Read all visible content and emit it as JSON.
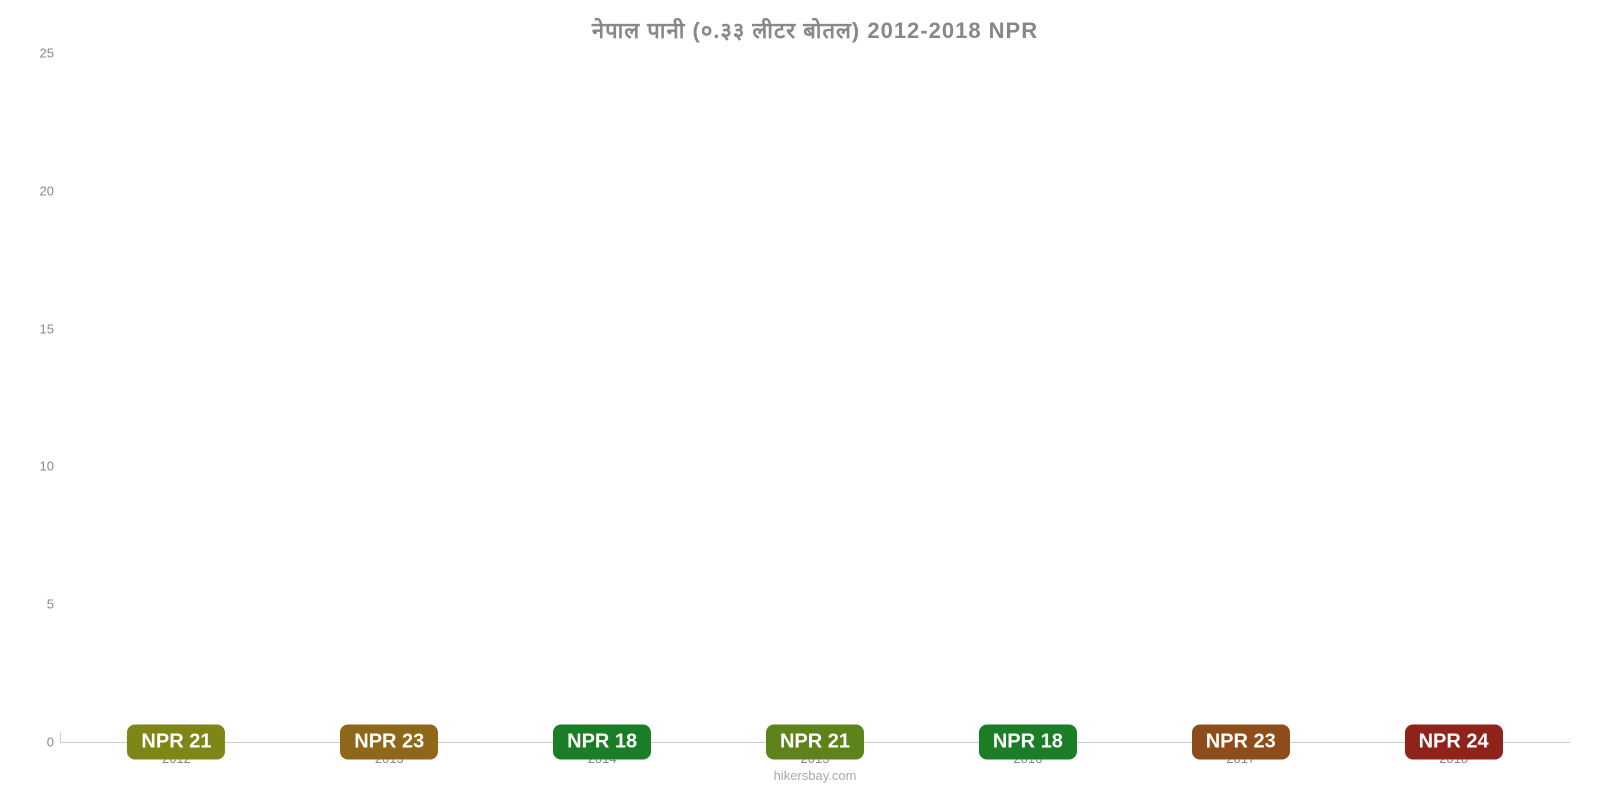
{
  "chart": {
    "type": "bar",
    "title": "नेपाल पानी (०.३३ लीटर बोतल) 2012-2018 NPR",
    "title_fontsize": 22,
    "title_color": "#888888",
    "background_color": "#ffffff",
    "grid_color": "#cccccc",
    "attribution": "hikersbay.com",
    "ylim": [
      0,
      25
    ],
    "ytick_step": 5,
    "yticks": [
      0,
      5,
      10,
      15,
      20,
      25
    ],
    "axis_label_color": "#888888",
    "axis_label_fontsize": 13,
    "bar_width_pct": 78,
    "label_fontsize": 20,
    "categories": [
      "2012",
      "2013",
      "2014",
      "2015",
      "2016",
      "2017",
      "2018"
    ],
    "values": [
      21,
      22.5,
      18.2,
      20.7,
      18.3,
      22.8,
      24
    ],
    "value_labels": [
      "NPR 21",
      "NPR 23",
      "NPR 18",
      "NPR 21",
      "NPR 18",
      "NPR 23",
      "NPR 24"
    ],
    "bar_colors": [
      "#cdd92a",
      "#e8a92c",
      "#2ecc40",
      "#97d52a",
      "#2ecc40",
      "#e87d2c",
      "#e83a2c"
    ],
    "label_bg_colors": [
      "#7f8618",
      "#8e6718",
      "#1b7e26",
      "#5d831a",
      "#1b7e26",
      "#8d4c1a",
      "#8f231b"
    ],
    "label_text_color": "#ffffff"
  }
}
